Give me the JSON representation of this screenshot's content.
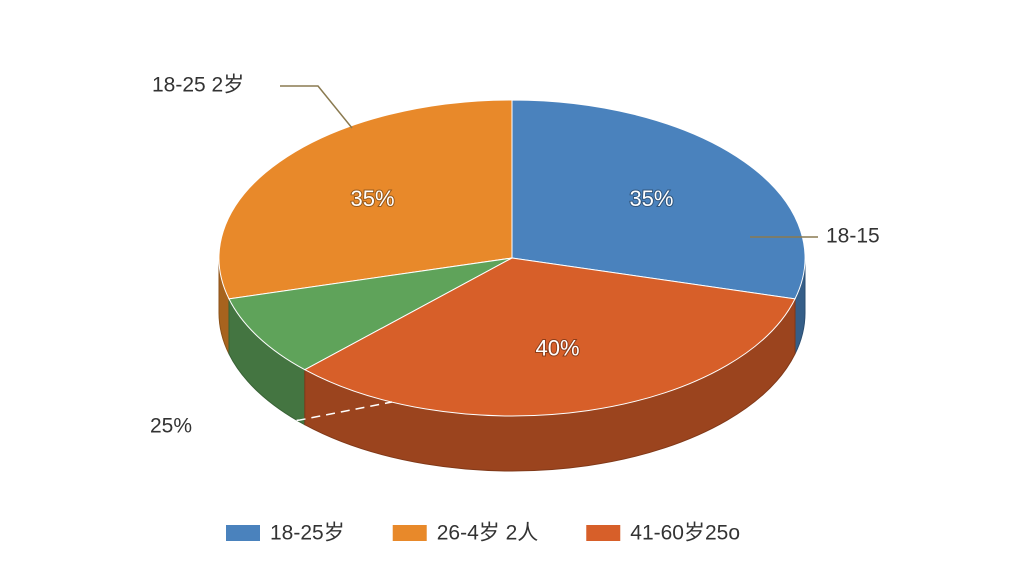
{
  "chart_data": {
    "type": "pie",
    "categories": [
      "18-25岁",
      "26-4岁 2人",
      null,
      "41-60岁25o"
    ],
    "values": [
      35,
      35,
      10,
      40
    ],
    "value_labels": [
      "35%",
      "35%",
      null,
      "40%"
    ],
    "colors": [
      "#4a82bd",
      "#e8892a",
      "#5fa35a",
      "#d75f29"
    ],
    "annotations": [
      "18-25 2岁",
      "18-15",
      "25%"
    ]
  }
}
